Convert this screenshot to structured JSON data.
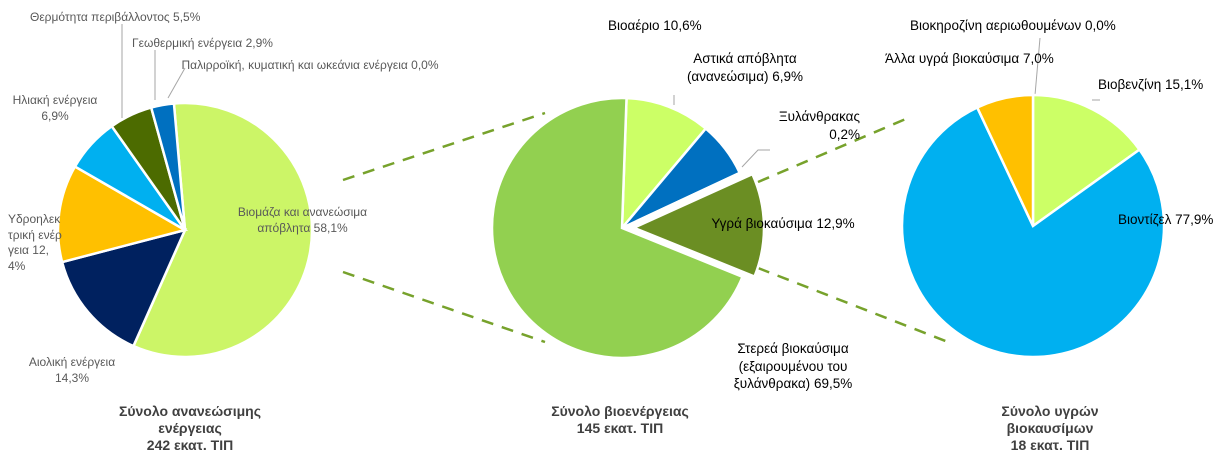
{
  "chart_data": [
    {
      "type": "pie",
      "title": "Σύνολο ανανεώσιμης ενέργειας",
      "subtitle": "242 εκατ. ΤΙΠ",
      "categories": [
        "Βιομάζα και ανανεώσιμα απόβλητα",
        "Αιολική ενέργεια",
        "Υδροηλεκτρική ενέργεια",
        "Ηλιακή ενέργεια",
        "Θερμότητα περιβάλλοντος",
        "Γεωθερμική ενέργεια",
        "Παλιρροϊκή, κυματική και ωκεάνια ενέργεια"
      ],
      "values": [
        58.1,
        14.3,
        12.4,
        6.9,
        5.5,
        2.9,
        0.0
      ],
      "value_labels": [
        "58,1%",
        "14,3%",
        "12,4%",
        "6,9%",
        "5,5%",
        "2,9%",
        "0,0%"
      ],
      "colors": [
        "#ccf567",
        "#00215f",
        "#ffc000",
        "#00b0f0",
        "#4c6b00",
        "#0070c0",
        "#7fbf3f"
      ]
    },
    {
      "type": "pie",
      "title": "Σύνολο βιοενέργειας",
      "subtitle": "145 εκατ. ΤΙΠ",
      "categories": [
        "Βιοαέριο",
        "Αστικά απόβλητα (ανανεώσιμα)",
        "Ξυλάνθρακας",
        "Υγρά βιοκαύσιμα",
        "Στερεά βιοκαύσιμα (εξαιρουμένου του ξυλάνθρακα)"
      ],
      "values": [
        10.6,
        6.9,
        0.2,
        12.9,
        69.5
      ],
      "value_labels": [
        "10,6%",
        "6,9%",
        "0,2%",
        "12,9%",
        "69,5%"
      ],
      "colors": [
        "#ccff66",
        "#0070c0",
        "#00b0f0",
        "#6b8e23",
        "#92d050"
      ]
    },
    {
      "type": "pie",
      "title": "Σύνολο υγρών βιοκαυσίμων",
      "subtitle": "18 εκατ. ΤΙΠ",
      "categories": [
        "Βιοβενζίνη",
        "Βιοντίζελ",
        "Άλλα υγρά βιοκαύσιμα",
        "Βιοκηροζίνη αεριωθουμένων"
      ],
      "values": [
        15.1,
        77.9,
        7.0,
        0.0
      ],
      "value_labels": [
        "15,1%",
        "77,9%",
        "7,0%",
        "0,0%"
      ],
      "colors": [
        "#ccff66",
        "#00b0f0",
        "#ffc000",
        "#0070c0"
      ]
    }
  ]
}
